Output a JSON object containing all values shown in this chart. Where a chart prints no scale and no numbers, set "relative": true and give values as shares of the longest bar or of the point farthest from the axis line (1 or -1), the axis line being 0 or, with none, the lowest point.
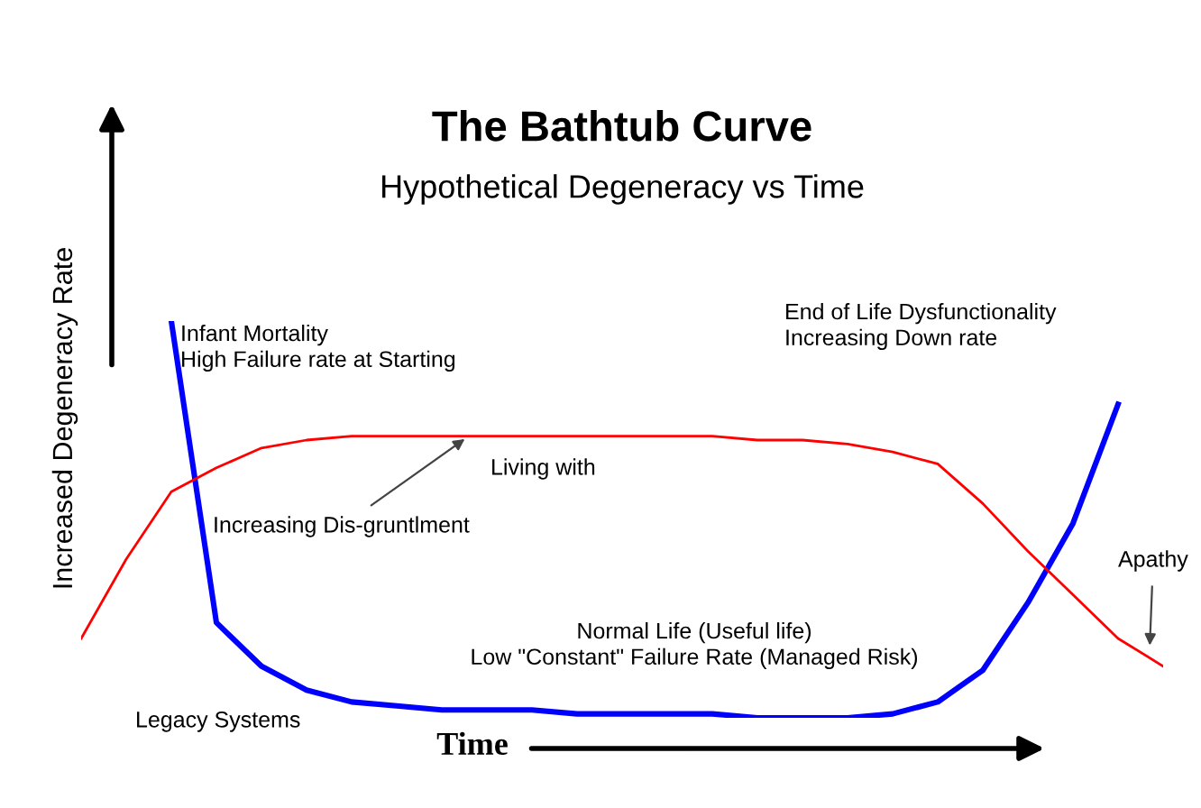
{
  "chart_data": {
    "type": "line",
    "relative": true,
    "title": "The Bathtub Curve",
    "subtitle": "Hypothetical Degeneracy vs Time",
    "xlabel": "Time",
    "ylabel": "Increased Degeneracy Rate",
    "tick_labels": false,
    "grid": false,
    "legend": false,
    "marker": "none",
    "line_style": "solid",
    "categories": [
      null,
      null,
      null,
      null,
      null,
      null,
      null,
      null,
      null,
      null,
      null,
      null,
      null,
      null,
      null,
      null,
      null,
      null,
      null,
      null,
      null,
      null,
      null,
      null,
      null
    ],
    "series": [
      {
        "color": "#0000ff",
        "values": [
          null,
          null,
          1.0,
          0.24,
          0.13,
          0.07,
          0.04,
          0.03,
          0.02,
          0.02,
          0.02,
          0.01,
          0.01,
          0.01,
          0.01,
          0.0,
          0.0,
          0.0,
          0.01,
          0.04,
          0.12,
          0.29,
          0.49,
          0.79,
          null
        ]
      },
      {
        "color": "#ff0000",
        "values": [
          0.2,
          0.4,
          0.57,
          0.63,
          0.68,
          0.7,
          0.71,
          0.71,
          0.71,
          0.71,
          0.71,
          0.71,
          0.71,
          0.71,
          0.71,
          0.7,
          0.7,
          0.69,
          0.67,
          0.64,
          0.54,
          0.42,
          0.31,
          0.2,
          0.13
        ]
      }
    ],
    "annotations": [
      "Infant Mortality\nHigh Failure rate at Starting",
      "End of Life Dysfunctionality\nIncreasing Down rate",
      "Living with",
      "Increasing Dis-gruntlment",
      "Normal Life (Useful life)\nLow \"Constant\" Failure Rate (Managed Risk)",
      "Apathy",
      "Legacy Systems"
    ]
  }
}
